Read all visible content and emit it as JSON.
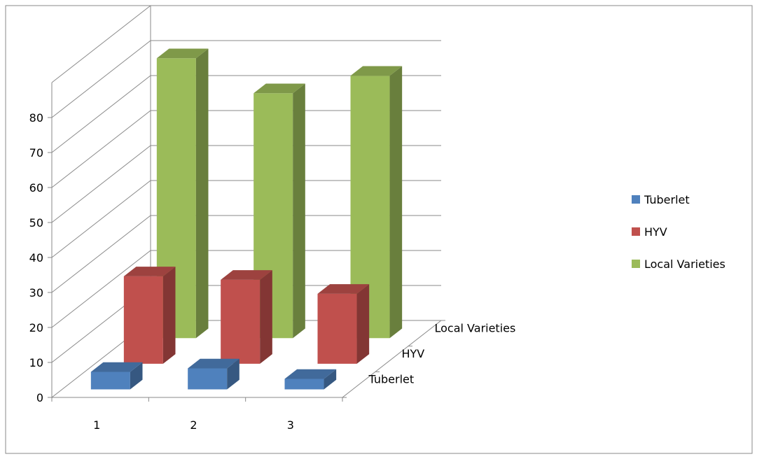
{
  "chart_data": {
    "type": "bar",
    "subtype": "3d-column",
    "title": "",
    "xlabel": "",
    "ylabel": "",
    "categories": [
      "1",
      "2",
      "3"
    ],
    "depth_labels": [
      "Tuberlet",
      "HYV",
      "Local Varieties"
    ],
    "series": [
      {
        "name": "Tuberlet",
        "color": "#4f81bd",
        "values": [
          5,
          6,
          3
        ]
      },
      {
        "name": "HYV",
        "color": "#c0504d",
        "values": [
          25,
          24,
          20
        ]
      },
      {
        "name": "Local Varieties",
        "color": "#9bbb59",
        "values": [
          80,
          70,
          75
        ]
      }
    ],
    "ylim": [
      0,
      80
    ],
    "yticks": [
      0,
      10,
      20,
      30,
      40,
      50,
      60,
      70,
      80
    ],
    "grid": true,
    "legend": "right"
  }
}
